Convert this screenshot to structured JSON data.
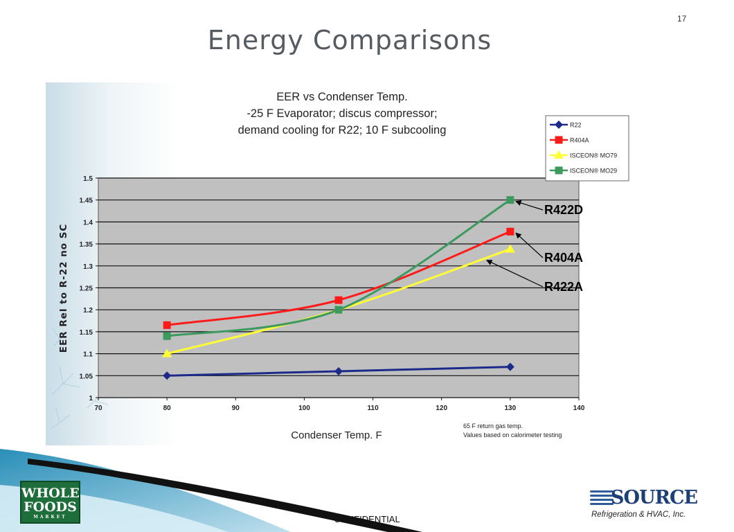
{
  "slide": {
    "number": "17",
    "title": "Energy Comparisons",
    "footer": "CONFIDENTIAL"
  },
  "logos": {
    "whole_foods": {
      "line1": "WHOLE",
      "line2": "FOODS",
      "line3": "MARKET"
    },
    "source": {
      "name": "SOURCE",
      "tagline": "Refrigeration & HVAC, Inc."
    }
  },
  "chart_data": {
    "type": "line",
    "title_lines": [
      "EER vs Condenser Temp.",
      "-25 F Evaporator; discus compressor;",
      "demand cooling for R22; 10 F subcooling"
    ],
    "xlabel": "Condenser Temp. F",
    "ylabel": "EER Rel to R-22 no SC",
    "xlim": [
      70,
      140
    ],
    "ylim": [
      1,
      1.5
    ],
    "x_ticks": [
      "70",
      "80",
      "90",
      "100",
      "110",
      "120",
      "130",
      "140"
    ],
    "y_ticks": [
      "1",
      "1.05",
      "1.1",
      "1.15",
      "1.2",
      "1.25",
      "1.3",
      "1.35",
      "1.4",
      "1.45",
      "1.5"
    ],
    "grid": "horizontal",
    "legend_position": "top-right",
    "x": [
      80,
      105,
      130
    ],
    "series": [
      {
        "name": "R22",
        "color": "#1c2a8a",
        "marker": "diamond",
        "values": [
          1.05,
          1.06,
          1.07
        ]
      },
      {
        "name": "R404A",
        "color": "#ff1a1a",
        "marker": "square",
        "values": [
          1.165,
          1.222,
          1.378
        ]
      },
      {
        "name": "ISCEON® MO79",
        "color": "#ffff33",
        "marker": "triangle",
        "values": [
          1.1,
          1.2,
          1.338
        ]
      },
      {
        "name": "ISCEON® MO29",
        "color": "#3d9a5e",
        "marker": "square",
        "values": [
          1.14,
          1.2,
          1.45
        ]
      }
    ],
    "annotations": [
      {
        "text": "R422D",
        "series": 3
      },
      {
        "text": "R404A",
        "series": 1
      },
      {
        "text": "R422A",
        "series": 2
      }
    ],
    "notes": [
      "65 F return gas temp.",
      "Values based on calorimeter testing"
    ]
  }
}
